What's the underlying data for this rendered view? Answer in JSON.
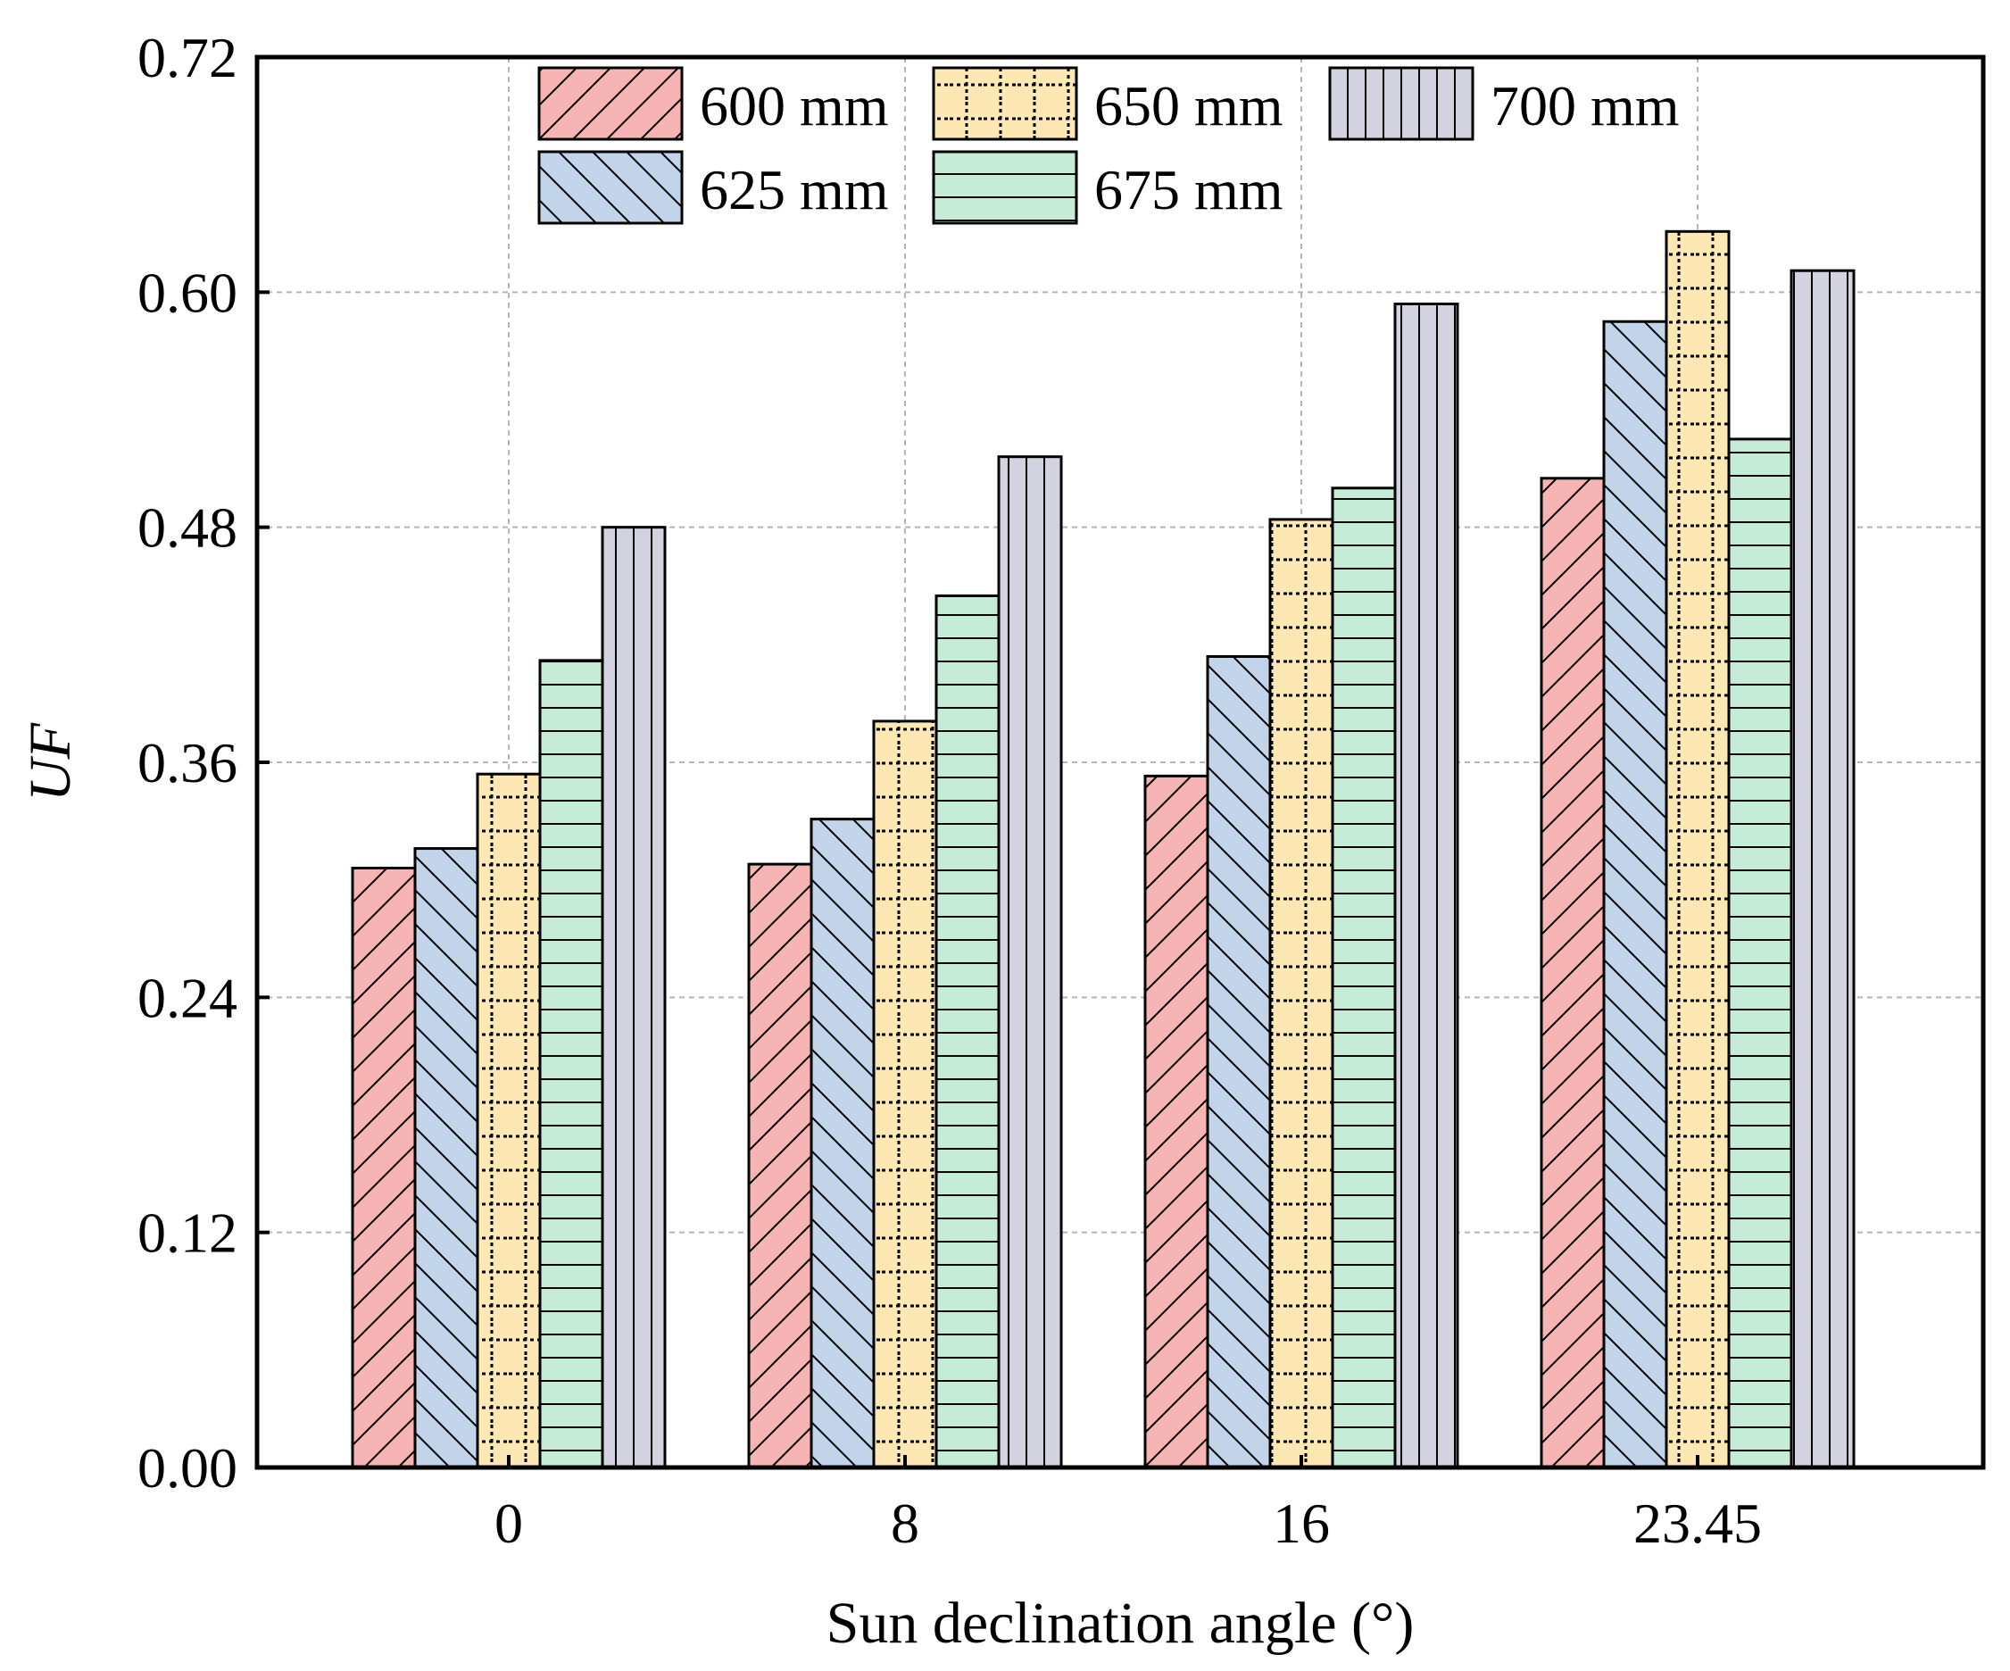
{
  "chart_data": {
    "type": "bar",
    "xlabel": "Sun declination angle (°)",
    "ylabel": "UF",
    "categories": [
      "0",
      "8",
      "16",
      "23.45"
    ],
    "ylim": [
      0,
      0.72
    ],
    "yticks": [
      "0.00",
      "0.12",
      "0.24",
      "0.36",
      "0.48",
      "0.60",
      "0.72"
    ],
    "grid": true,
    "legend_position": "top-center",
    "series": [
      {
        "name": "600 mm",
        "values": [
          0.306,
          0.308,
          0.353,
          0.505
        ],
        "color": "#f7b4b4",
        "pattern": "diagonal-forward"
      },
      {
        "name": "625 mm",
        "values": [
          0.316,
          0.331,
          0.414,
          0.585
        ],
        "color": "#c2d4ea",
        "pattern": "diagonal-backward"
      },
      {
        "name": "650 mm",
        "values": [
          0.354,
          0.381,
          0.484,
          0.631
        ],
        "color": "#fde7b3",
        "pattern": "dotted-grid"
      },
      {
        "name": "675 mm",
        "values": [
          0.412,
          0.445,
          0.5,
          0.525
        ],
        "color": "#c4ecd6",
        "pattern": "horizontal"
      },
      {
        "name": "700 mm",
        "values": [
          0.48,
          0.516,
          0.594,
          0.611
        ],
        "color": "#d2d2e1",
        "pattern": "vertical"
      }
    ]
  }
}
